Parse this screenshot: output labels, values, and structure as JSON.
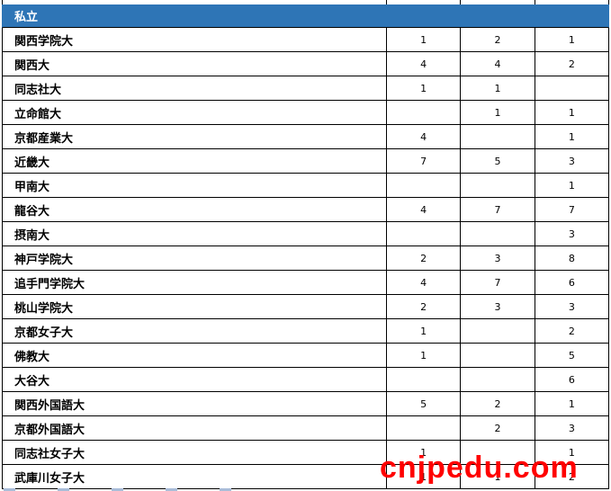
{
  "colors": {
    "section_header_bg": "#2E75B6",
    "section_header_text": "#FFFFFF",
    "grid_border": "#000000",
    "watermark_red": "#FF0000",
    "row_bg": "#FFFFFF"
  },
  "table": {
    "section_header": "私立",
    "num_columns": 3,
    "rows": [
      {
        "name": "関西学院大",
        "values": [
          "1",
          "2",
          "1"
        ]
      },
      {
        "name": "関西大",
        "values": [
          "4",
          "4",
          "2"
        ]
      },
      {
        "name": "同志社大",
        "values": [
          "1",
          "1",
          ""
        ]
      },
      {
        "name": "立命館大",
        "values": [
          "",
          "1",
          "1"
        ]
      },
      {
        "name": "京都産業大",
        "values": [
          "4",
          "",
          "1"
        ]
      },
      {
        "name": "近畿大",
        "values": [
          "7",
          "5",
          "3"
        ]
      },
      {
        "name": "甲南大",
        "values": [
          "",
          "",
          "1"
        ]
      },
      {
        "name": "龍谷大",
        "values": [
          "4",
          "7",
          "7"
        ]
      },
      {
        "name": "摂南大",
        "values": [
          "",
          "",
          "3"
        ]
      },
      {
        "name": "神戸学院大",
        "values": [
          "2",
          "3",
          "8"
        ]
      },
      {
        "name": "追手門学院大",
        "values": [
          "4",
          "7",
          "6"
        ]
      },
      {
        "name": "桃山学院大",
        "values": [
          "2",
          "3",
          "3"
        ]
      },
      {
        "name": "京都女子大",
        "values": [
          "1",
          "",
          "2"
        ]
      },
      {
        "name": "佛教大",
        "values": [
          "1",
          "",
          "5"
        ]
      },
      {
        "name": "大谷大",
        "values": [
          "",
          "",
          "6"
        ]
      },
      {
        "name": "関西外国語大",
        "values": [
          "5",
          "2",
          "1"
        ]
      },
      {
        "name": "京都外国語大",
        "values": [
          "",
          "2",
          "3"
        ]
      },
      {
        "name": "同志社女子大",
        "values": [
          "1",
          "",
          "1"
        ]
      },
      {
        "name": "武庫川女子大",
        "values": [
          "1",
          "1",
          "2"
        ]
      }
    ]
  },
  "watermark": {
    "text": "cnjpedu.com"
  }
}
